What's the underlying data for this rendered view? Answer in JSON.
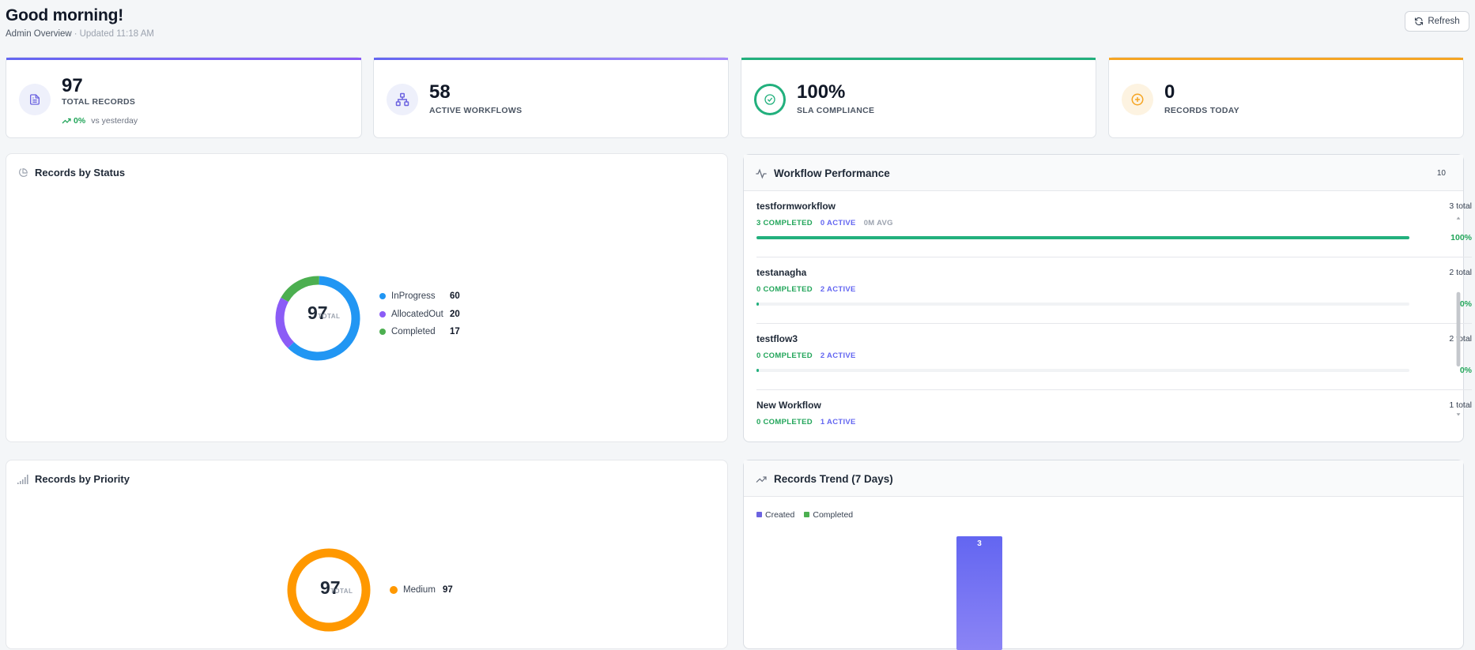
{
  "header": {
    "greeting": "Good morning!",
    "subtitle": "Admin Overview",
    "updated": "Updated 11:18 AM",
    "refresh_label": "Refresh"
  },
  "stats": [
    {
      "value": "97",
      "label": "TOTAL RECORDS",
      "trend_pct": "0%",
      "trend_text": "vs yesterday",
      "icon": "document-icon",
      "accent": "#6c63e0"
    },
    {
      "value": "58",
      "label": "ACTIVE WORKFLOWS",
      "icon": "workflow-icon",
      "accent": "#7b6cf0"
    },
    {
      "value": "100%",
      "label": "SLA COMPLIANCE",
      "icon": "check-circle-icon",
      "accent": "#22b07d"
    },
    {
      "value": "0",
      "label": "RECORDS TODAY",
      "icon": "plus-circle-icon",
      "accent": "#f5a524"
    }
  ],
  "status_panel": {
    "title": "Records by Status",
    "center_value": "97",
    "center_label": "TOTAL",
    "items": [
      {
        "name": "InProgress",
        "value": 60,
        "color": "#2196f3"
      },
      {
        "name": "AllocatedOut",
        "value": 20,
        "color": "#8b5cf6"
      },
      {
        "name": "Completed",
        "value": 17,
        "color": "#4caf50"
      }
    ]
  },
  "workflow_panel": {
    "title": "Workflow Performance",
    "count": "10",
    "items": [
      {
        "name": "testformworkflow",
        "total": "3 total",
        "completed": "3 COMPLETED",
        "active": "0 ACTIVE",
        "avg": "0M AVG",
        "pct_label": "100%",
        "pct": 100
      },
      {
        "name": "testanagha",
        "total": "2 total",
        "completed": "0 COMPLETED",
        "active": "2 ACTIVE",
        "avg": "",
        "pct_label": "0%",
        "pct": 0
      },
      {
        "name": "testflow3",
        "total": "2 total",
        "completed": "0 COMPLETED",
        "active": "2 ACTIVE",
        "avg": "",
        "pct_label": "0%",
        "pct": 0
      },
      {
        "name": "New Workflow",
        "total": "1 total",
        "completed": "0 COMPLETED",
        "active": "1 ACTIVE",
        "avg": "",
        "pct_label": "",
        "pct": 0
      }
    ]
  },
  "priority_panel": {
    "title": "Records by Priority",
    "center_value": "97",
    "center_label": "TOTAL",
    "items": [
      {
        "name": "Medium",
        "value": 97,
        "color": "#ff9800"
      }
    ]
  },
  "trend_panel": {
    "title": "Records Trend (7 Days)",
    "legend": [
      {
        "name": "Created",
        "color": "#6c63e0"
      },
      {
        "name": "Completed",
        "color": "#4caf50"
      }
    ]
  },
  "chart_data": [
    {
      "type": "pie",
      "title": "Records by Status",
      "categories": [
        "InProgress",
        "AllocatedOut",
        "Completed"
      ],
      "values": [
        60,
        20,
        17
      ]
    },
    {
      "type": "pie",
      "title": "Records by Priority",
      "categories": [
        "Medium"
      ],
      "values": [
        97
      ]
    },
    {
      "type": "bar",
      "title": "Records Trend (7 Days)",
      "series": [
        {
          "name": "Created",
          "values": [
            3
          ]
        },
        {
          "name": "Completed",
          "values": [
            0
          ]
        }
      ],
      "data_labels": [
        "3"
      ]
    }
  ]
}
